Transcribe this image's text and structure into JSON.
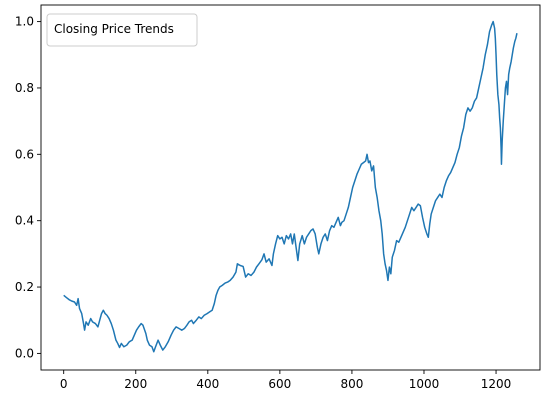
{
  "chart_data": {
    "type": "line",
    "title": "",
    "xlabel": "",
    "ylabel": "",
    "xlim": [
      -63,
      1322
    ],
    "ylim": [
      -0.05,
      1.05
    ],
    "x_ticks": [
      0,
      200,
      400,
      600,
      800,
      1000,
      1200
    ],
    "y_ticks": [
      0.0,
      0.2,
      0.4,
      0.6,
      0.8,
      1.0
    ],
    "x_tick_labels": [
      "0",
      "200",
      "400",
      "600",
      "800",
      "1000",
      "1200"
    ],
    "y_tick_labels": [
      "0.0",
      "0.2",
      "0.4",
      "0.6",
      "0.8",
      "1.0"
    ],
    "grid": false,
    "legend": {
      "location": "top-left",
      "entries": [
        "Closing Price Trends"
      ],
      "shows_line": false
    },
    "series": [
      {
        "name": "Closing Price Trends",
        "color": "#1f77b4",
        "points": [
          [
            0,
            0.175
          ],
          [
            8,
            0.168
          ],
          [
            15,
            0.162
          ],
          [
            22,
            0.158
          ],
          [
            30,
            0.155
          ],
          [
            36,
            0.145
          ],
          [
            40,
            0.165
          ],
          [
            44,
            0.135
          ],
          [
            50,
            0.12
          ],
          [
            55,
            0.09
          ],
          [
            58,
            0.07
          ],
          [
            62,
            0.095
          ],
          [
            68,
            0.085
          ],
          [
            75,
            0.105
          ],
          [
            80,
            0.095
          ],
          [
            88,
            0.09
          ],
          [
            95,
            0.08
          ],
          [
            100,
            0.1
          ],
          [
            105,
            0.12
          ],
          [
            110,
            0.13
          ],
          [
            115,
            0.12
          ],
          [
            120,
            0.115
          ],
          [
            126,
            0.105
          ],
          [
            132,
            0.09
          ],
          [
            138,
            0.07
          ],
          [
            145,
            0.04
          ],
          [
            150,
            0.03
          ],
          [
            155,
            0.018
          ],
          [
            160,
            0.03
          ],
          [
            167,
            0.02
          ],
          [
            175,
            0.025
          ],
          [
            182,
            0.035
          ],
          [
            190,
            0.04
          ],
          [
            196,
            0.055
          ],
          [
            202,
            0.07
          ],
          [
            208,
            0.08
          ],
          [
            215,
            0.09
          ],
          [
            220,
            0.085
          ],
          [
            228,
            0.06
          ],
          [
            232,
            0.04
          ],
          [
            238,
            0.025
          ],
          [
            245,
            0.02
          ],
          [
            250,
            0.005
          ],
          [
            255,
            0.02
          ],
          [
            262,
            0.04
          ],
          [
            268,
            0.025
          ],
          [
            275,
            0.01
          ],
          [
            282,
            0.02
          ],
          [
            290,
            0.035
          ],
          [
            298,
            0.055
          ],
          [
            305,
            0.07
          ],
          [
            312,
            0.08
          ],
          [
            320,
            0.075
          ],
          [
            328,
            0.07
          ],
          [
            335,
            0.075
          ],
          [
            342,
            0.085
          ],
          [
            348,
            0.095
          ],
          [
            355,
            0.1
          ],
          [
            360,
            0.09
          ],
          [
            368,
            0.1
          ],
          [
            375,
            0.11
          ],
          [
            382,
            0.105
          ],
          [
            390,
            0.115
          ],
          [
            398,
            0.12
          ],
          [
            405,
            0.125
          ],
          [
            412,
            0.13
          ],
          [
            418,
            0.15
          ],
          [
            423,
            0.175
          ],
          [
            428,
            0.19
          ],
          [
            433,
            0.2
          ],
          [
            440,
            0.205
          ],
          [
            448,
            0.212
          ],
          [
            455,
            0.215
          ],
          [
            462,
            0.22
          ],
          [
            470,
            0.23
          ],
          [
            478,
            0.245
          ],
          [
            482,
            0.27
          ],
          [
            490,
            0.265
          ],
          [
            498,
            0.262
          ],
          [
            505,
            0.23
          ],
          [
            512,
            0.24
          ],
          [
            520,
            0.235
          ],
          [
            528,
            0.245
          ],
          [
            535,
            0.26
          ],
          [
            542,
            0.27
          ],
          [
            550,
            0.282
          ],
          [
            556,
            0.3
          ],
          [
            562,
            0.275
          ],
          [
            570,
            0.285
          ],
          [
            578,
            0.265
          ],
          [
            582,
            0.3
          ],
          [
            588,
            0.33
          ],
          [
            594,
            0.355
          ],
          [
            600,
            0.345
          ],
          [
            606,
            0.35
          ],
          [
            612,
            0.33
          ],
          [
            618,
            0.355
          ],
          [
            624,
            0.345
          ],
          [
            630,
            0.36
          ],
          [
            635,
            0.33
          ],
          [
            640,
            0.36
          ],
          [
            645,
            0.32
          ],
          [
            650,
            0.28
          ],
          [
            655,
            0.33
          ],
          [
            662,
            0.355
          ],
          [
            668,
            0.33
          ],
          [
            674,
            0.35
          ],
          [
            680,
            0.36
          ],
          [
            686,
            0.37
          ],
          [
            692,
            0.375
          ],
          [
            698,
            0.36
          ],
          [
            704,
            0.32
          ],
          [
            708,
            0.3
          ],
          [
            714,
            0.33
          ],
          [
            720,
            0.35
          ],
          [
            726,
            0.36
          ],
          [
            732,
            0.34
          ],
          [
            738,
            0.37
          ],
          [
            744,
            0.385
          ],
          [
            750,
            0.38
          ],
          [
            756,
            0.395
          ],
          [
            762,
            0.41
          ],
          [
            768,
            0.385
          ],
          [
            772,
            0.395
          ],
          [
            778,
            0.4
          ],
          [
            784,
            0.42
          ],
          [
            790,
            0.44
          ],
          [
            796,
            0.47
          ],
          [
            802,
            0.5
          ],
          [
            808,
            0.52
          ],
          [
            814,
            0.54
          ],
          [
            820,
            0.555
          ],
          [
            826,
            0.57
          ],
          [
            832,
            0.575
          ],
          [
            838,
            0.58
          ],
          [
            842,
            0.6
          ],
          [
            846,
            0.575
          ],
          [
            850,
            0.58
          ],
          [
            855,
            0.55
          ],
          [
            860,
            0.565
          ],
          [
            865,
            0.5
          ],
          [
            870,
            0.47
          ],
          [
            875,
            0.43
          ],
          [
            880,
            0.4
          ],
          [
            884,
            0.36
          ],
          [
            888,
            0.3
          ],
          [
            892,
            0.27
          ],
          [
            896,
            0.25
          ],
          [
            900,
            0.22
          ],
          [
            904,
            0.26
          ],
          [
            908,
            0.24
          ],
          [
            912,
            0.29
          ],
          [
            918,
            0.31
          ],
          [
            924,
            0.34
          ],
          [
            930,
            0.335
          ],
          [
            936,
            0.35
          ],
          [
            942,
            0.365
          ],
          [
            948,
            0.38
          ],
          [
            954,
            0.4
          ],
          [
            960,
            0.42
          ],
          [
            966,
            0.44
          ],
          [
            972,
            0.43
          ],
          [
            978,
            0.44
          ],
          [
            984,
            0.45
          ],
          [
            990,
            0.445
          ],
          [
            996,
            0.41
          ],
          [
            1002,
            0.38
          ],
          [
            1008,
            0.36
          ],
          [
            1012,
            0.35
          ],
          [
            1016,
            0.39
          ],
          [
            1020,
            0.42
          ],
          [
            1026,
            0.44
          ],
          [
            1032,
            0.46
          ],
          [
            1038,
            0.47
          ],
          [
            1044,
            0.48
          ],
          [
            1050,
            0.47
          ],
          [
            1056,
            0.5
          ],
          [
            1062,
            0.52
          ],
          [
            1068,
            0.535
          ],
          [
            1074,
            0.545
          ],
          [
            1080,
            0.56
          ],
          [
            1086,
            0.575
          ],
          [
            1092,
            0.6
          ],
          [
            1098,
            0.62
          ],
          [
            1104,
            0.655
          ],
          [
            1110,
            0.68
          ],
          [
            1116,
            0.72
          ],
          [
            1122,
            0.74
          ],
          [
            1128,
            0.73
          ],
          [
            1134,
            0.74
          ],
          [
            1140,
            0.76
          ],
          [
            1146,
            0.77
          ],
          [
            1152,
            0.8
          ],
          [
            1158,
            0.83
          ],
          [
            1164,
            0.86
          ],
          [
            1170,
            0.9
          ],
          [
            1176,
            0.93
          ],
          [
            1182,
            0.97
          ],
          [
            1188,
            0.99
          ],
          [
            1192,
            1.0
          ],
          [
            1196,
            0.98
          ],
          [
            1198,
            0.95
          ],
          [
            1200,
            0.9
          ],
          [
            1202,
            0.84
          ],
          [
            1205,
            0.78
          ],
          [
            1208,
            0.75
          ],
          [
            1210,
            0.71
          ],
          [
            1212,
            0.68
          ],
          [
            1214,
            0.62
          ],
          [
            1215,
            0.57
          ],
          [
            1217,
            0.64
          ],
          [
            1220,
            0.7
          ],
          [
            1223,
            0.75
          ],
          [
            1226,
            0.8
          ],
          [
            1229,
            0.82
          ],
          [
            1232,
            0.78
          ],
          [
            1235,
            0.84
          ],
          [
            1238,
            0.86
          ],
          [
            1242,
            0.88
          ],
          [
            1245,
            0.9
          ],
          [
            1248,
            0.92
          ],
          [
            1252,
            0.94
          ],
          [
            1255,
            0.95
          ],
          [
            1258,
            0.965
          ]
        ]
      }
    ]
  }
}
